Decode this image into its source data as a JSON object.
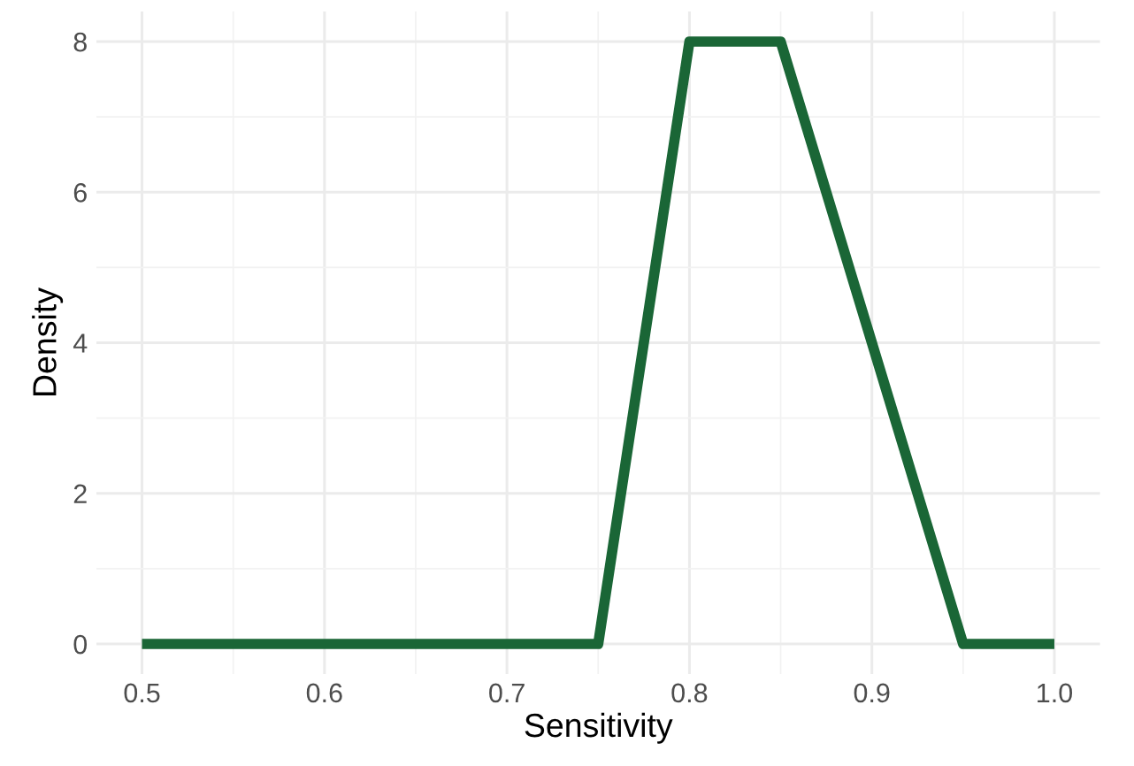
{
  "chart_data": {
    "type": "line",
    "xlabel": "Sensitivity",
    "ylabel": "Density",
    "x": [
      0.5,
      0.75,
      0.8,
      0.85,
      0.95,
      1.0
    ],
    "series": [
      {
        "color": "#1a6636",
        "values": [
          0,
          0,
          8,
          8,
          0,
          0
        ]
      }
    ],
    "xlim": [
      0.475,
      1.025
    ],
    "ylim": [
      -0.4,
      8.4
    ],
    "xticks": [
      {
        "value": 0.5,
        "label": "0.5"
      },
      {
        "value": 0.6,
        "label": "0.6"
      },
      {
        "value": 0.7,
        "label": "0.7"
      },
      {
        "value": 0.8,
        "label": "0.8"
      },
      {
        "value": 0.9,
        "label": "0.9"
      },
      {
        "value": 1.0,
        "label": "1.0"
      }
    ],
    "yticks": [
      0,
      2,
      4,
      6,
      8
    ],
    "grid": true,
    "line_style": "solid",
    "marker": "none"
  }
}
